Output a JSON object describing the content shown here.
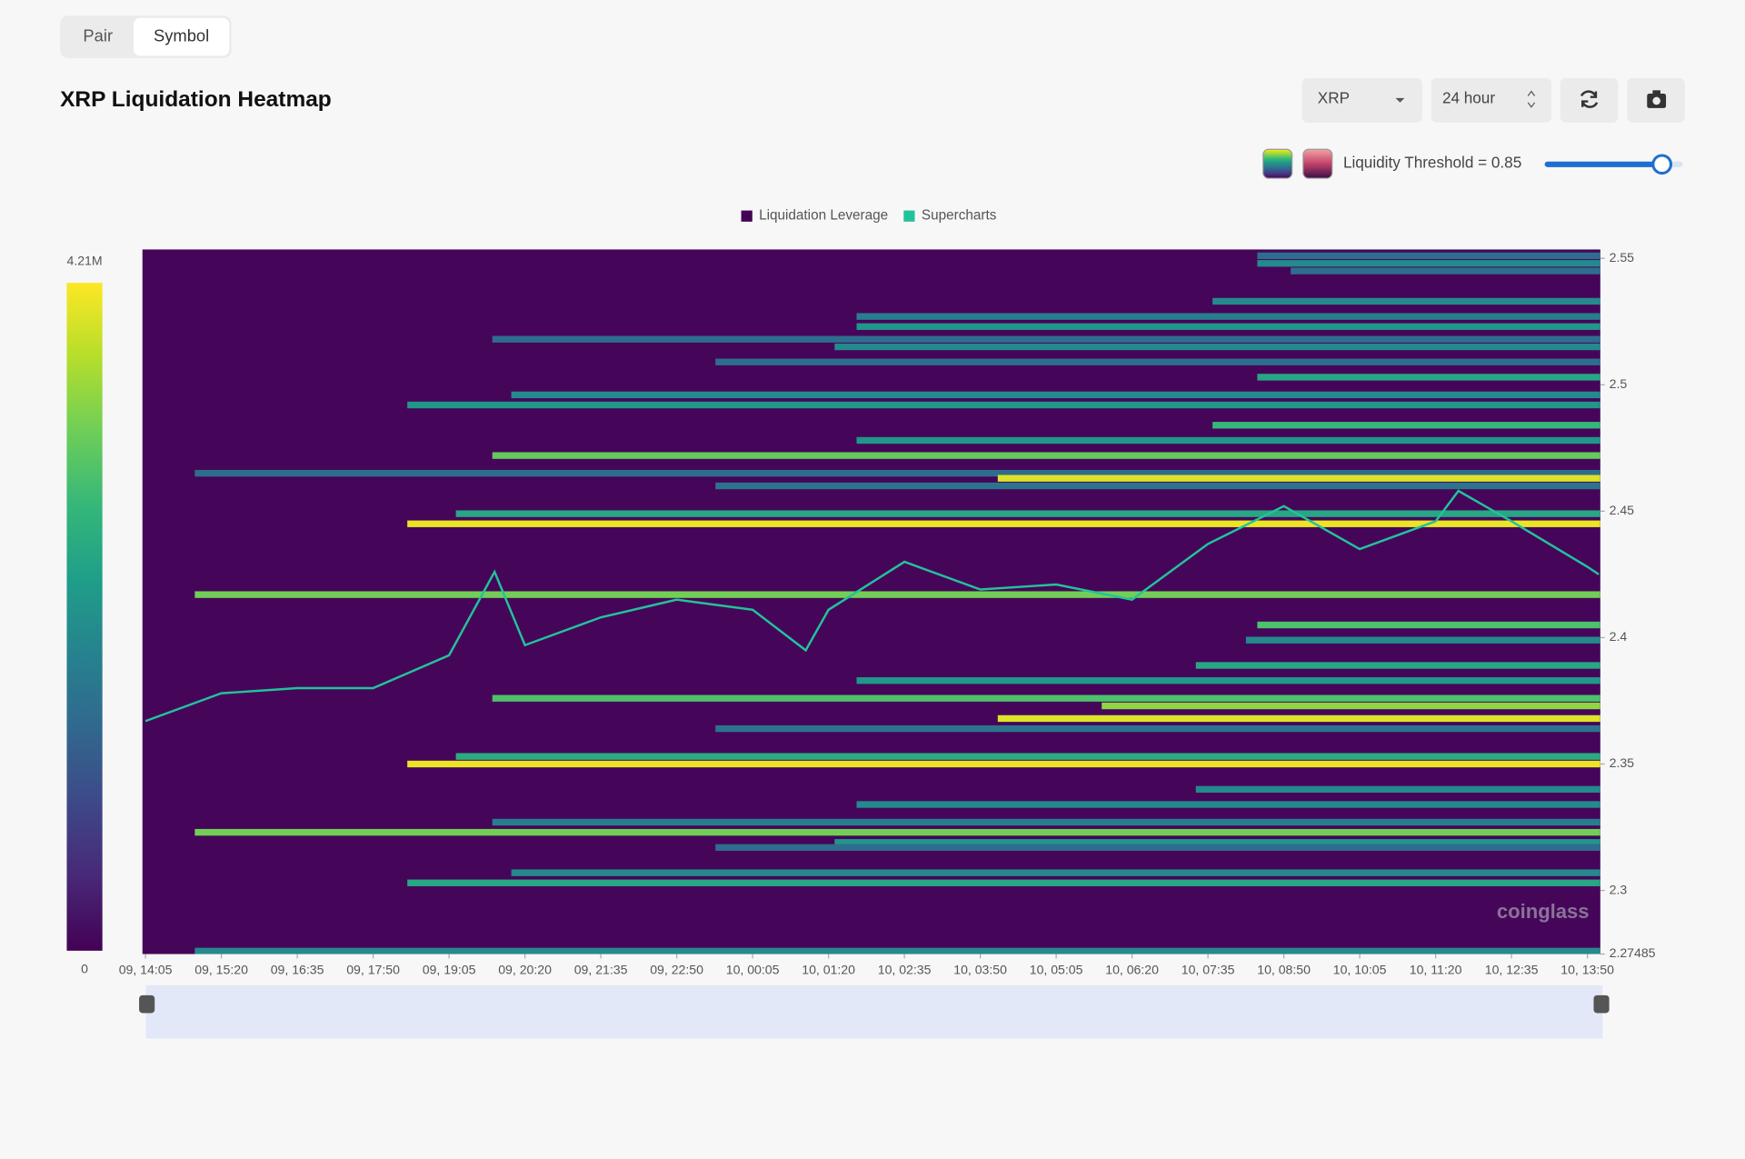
{
  "tabs": [
    "Pair",
    "Symbol"
  ],
  "title": "XRP Liquidation Heatmap",
  "controls": {
    "symbol": "XRP",
    "range": "24 hour",
    "threshold_label": "Liquidity Threshold = 0.85",
    "threshold": 0.85
  },
  "watermark": "coinglass",
  "chart_data": {
    "type": "heatmap",
    "xlim": [
      -0.04,
      19.17
    ],
    "xticks": [
      {
        "value": 0,
        "label": "09, 14:05"
      },
      {
        "value": 1,
        "label": "09, 15:20"
      },
      {
        "value": 2,
        "label": "09, 16:35"
      },
      {
        "value": 3,
        "label": "09, 17:50"
      },
      {
        "value": 4,
        "label": "09, 19:05"
      },
      {
        "value": 5,
        "label": "09, 20:20"
      },
      {
        "value": 6,
        "label": "09, 21:35"
      },
      {
        "value": 7,
        "label": "09, 22:50"
      },
      {
        "value": 8,
        "label": "10, 00:05"
      },
      {
        "value": 9,
        "label": "10, 01:20"
      },
      {
        "value": 10,
        "label": "10, 02:35"
      },
      {
        "value": 11,
        "label": "10, 03:50"
      },
      {
        "value": 12,
        "label": "10, 05:05"
      },
      {
        "value": 13,
        "label": "10, 06:20"
      },
      {
        "value": 14,
        "label": "10, 07:35"
      },
      {
        "value": 15,
        "label": "10, 08:50"
      },
      {
        "value": 16,
        "label": "10, 10:05"
      },
      {
        "value": 17,
        "label": "10, 11:20"
      },
      {
        "value": 18,
        "label": "10, 12:35"
      },
      {
        "value": 19,
        "label": "10, 13:50"
      }
    ],
    "ylim": [
      2.27485,
      2.5535
    ],
    "yticks": [
      2.27485,
      2.3,
      2.35,
      2.4,
      2.45,
      2.5,
      2.55
    ],
    "clim": [
      0,
      4210000
    ],
    "cticks": [
      0,
      {
        "value": 4210000,
        "label": "4.21M"
      }
    ],
    "series": [
      {
        "name": "Liquidation Leverage",
        "color": "#440154",
        "bands": [
          {
            "price": 2.551,
            "start": 14.65,
            "value": 1500000
          },
          {
            "price": 2.548,
            "start": 14.65,
            "value": 2000000
          },
          {
            "price": 2.545,
            "start": 15.09,
            "value": 1500000
          },
          {
            "price": 2.533,
            "start": 14.06,
            "value": 2000000
          },
          {
            "price": 2.527,
            "start": 9.37,
            "value": 1800000
          },
          {
            "price": 2.523,
            "start": 9.37,
            "value": 2200000
          },
          {
            "price": 2.518,
            "start": 4.57,
            "value": 1500000
          },
          {
            "price": 2.515,
            "start": 9.08,
            "value": 2000000
          },
          {
            "price": 2.509,
            "start": 7.51,
            "value": 1500000
          },
          {
            "price": 2.503,
            "start": 14.65,
            "value": 2500000
          },
          {
            "price": 2.496,
            "start": 4.82,
            "value": 2000000
          },
          {
            "price": 2.492,
            "start": 3.45,
            "value": 2200000
          },
          {
            "price": 2.484,
            "start": 14.06,
            "value": 2800000
          },
          {
            "price": 2.478,
            "start": 9.37,
            "value": 2200000
          },
          {
            "price": 2.472,
            "start": 4.57,
            "value": 3200000
          },
          {
            "price": 2.465,
            "start": 0.65,
            "value": 1500000
          },
          {
            "price": 2.463,
            "start": 11.23,
            "value": 4000000
          },
          {
            "price": 2.46,
            "start": 7.51,
            "value": 1600000
          },
          {
            "price": 2.449,
            "start": 4.09,
            "value": 2500000
          },
          {
            "price": 2.445,
            "start": 3.45,
            "value": 4100000
          },
          {
            "price": 2.417,
            "start": 0.65,
            "value": 3300000
          },
          {
            "price": 2.405,
            "start": 14.65,
            "value": 3000000
          },
          {
            "price": 2.399,
            "start": 14.5,
            "value": 2000000
          },
          {
            "price": 2.389,
            "start": 13.84,
            "value": 2500000
          },
          {
            "price": 2.383,
            "start": 9.37,
            "value": 2200000
          },
          {
            "price": 2.376,
            "start": 4.57,
            "value": 3000000
          },
          {
            "price": 2.373,
            "start": 12.6,
            "value": 3500000
          },
          {
            "price": 2.368,
            "start": 11.23,
            "value": 4000000
          },
          {
            "price": 2.364,
            "start": 7.51,
            "value": 1600000
          },
          {
            "price": 2.353,
            "start": 4.09,
            "value": 2600000
          },
          {
            "price": 2.35,
            "start": 3.45,
            "value": 4100000
          },
          {
            "price": 2.34,
            "start": 13.84,
            "value": 2000000
          },
          {
            "price": 2.334,
            "start": 9.37,
            "value": 2000000
          },
          {
            "price": 2.327,
            "start": 4.57,
            "value": 1800000
          },
          {
            "price": 2.323,
            "start": 0.65,
            "value": 3300000
          },
          {
            "price": 2.319,
            "start": 9.08,
            "value": 2200000
          },
          {
            "price": 2.317,
            "start": 7.51,
            "value": 1500000
          },
          {
            "price": 2.307,
            "start": 4.82,
            "value": 2000000
          },
          {
            "price": 2.303,
            "start": 3.45,
            "value": 2500000
          },
          {
            "price": 2.276,
            "start": 0.65,
            "value": 2000000
          }
        ]
      },
      {
        "name": "Supercharts",
        "color": "#22c39a",
        "x": [
          0,
          1,
          2,
          3,
          4,
          4.6,
          5,
          6,
          7,
          8,
          8.7,
          9,
          10,
          11,
          12,
          13,
          14,
          15,
          16,
          17,
          17.3,
          18,
          19,
          19.15
        ],
        "values": [
          2.367,
          2.378,
          2.38,
          2.38,
          2.393,
          2.426,
          2.397,
          2.408,
          2.415,
          2.411,
          2.395,
          2.411,
          2.43,
          2.419,
          2.421,
          2.415,
          2.437,
          2.452,
          2.435,
          2.446,
          2.458,
          2.446,
          2.428,
          2.425
        ]
      }
    ]
  }
}
